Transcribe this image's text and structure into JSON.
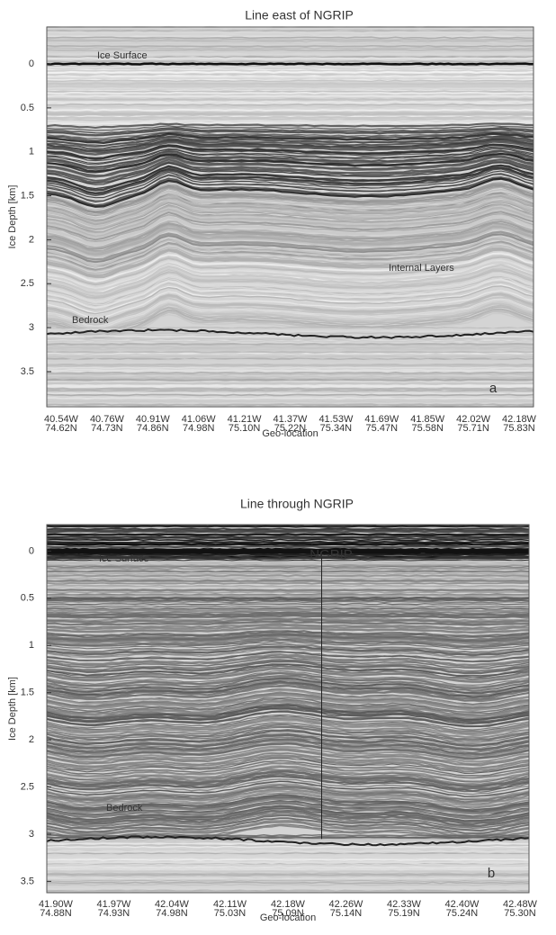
{
  "chart_data": [
    {
      "type": "radargram",
      "title": "Line east of NGRIP",
      "y_label": "Ice Depth [km]",
      "x_label": "Geo-location",
      "ylim": [
        -0.42,
        3.9
      ],
      "yticks": [
        0,
        0.5,
        1,
        1.5,
        2,
        2.5,
        3,
        3.5
      ],
      "xtick_labels": [
        [
          "40.54W",
          "74.62N"
        ],
        [
          "40.76W",
          "74.73N"
        ],
        [
          "40.91W",
          "74.86N"
        ],
        [
          "41.06W",
          "74.98N"
        ],
        [
          "41.21W",
          "75.10N"
        ],
        [
          "41.37W",
          "75.22N"
        ],
        [
          "41.53W",
          "75.34N"
        ],
        [
          "41.69W",
          "75.47N"
        ],
        [
          "41.85W",
          "75.58N"
        ],
        [
          "42.02W",
          "75.71N"
        ],
        [
          "42.18W",
          "75.83N"
        ]
      ],
      "annotations": [
        "Ice Surface",
        "Internal Layers",
        "Bedrock",
        "a"
      ]
    },
    {
      "type": "radargram",
      "title": "Line through NGRIP",
      "y_label": "Ice Depth [km]",
      "x_label": "Geo-location",
      "ylim": [
        -0.28,
        3.62
      ],
      "yticks": [
        0,
        0.5,
        1,
        1.5,
        2,
        2.5,
        3,
        3.5
      ],
      "xtick_labels": [
        [
          "41.90W",
          "74.88N"
        ],
        [
          "41.97W",
          "74.93N"
        ],
        [
          "42.04W",
          "74.98N"
        ],
        [
          "42.11W",
          "75.03N"
        ],
        [
          "42.18W",
          "75.09N"
        ],
        [
          "42.26W",
          "75.14N"
        ],
        [
          "42.33W",
          "75.19N"
        ],
        [
          "42.40W",
          "75.24N"
        ],
        [
          "42.48W",
          "75.30N"
        ]
      ],
      "annotations": [
        "Ice Surface",
        "NGRIP",
        "Bedrock",
        "b"
      ]
    }
  ]
}
